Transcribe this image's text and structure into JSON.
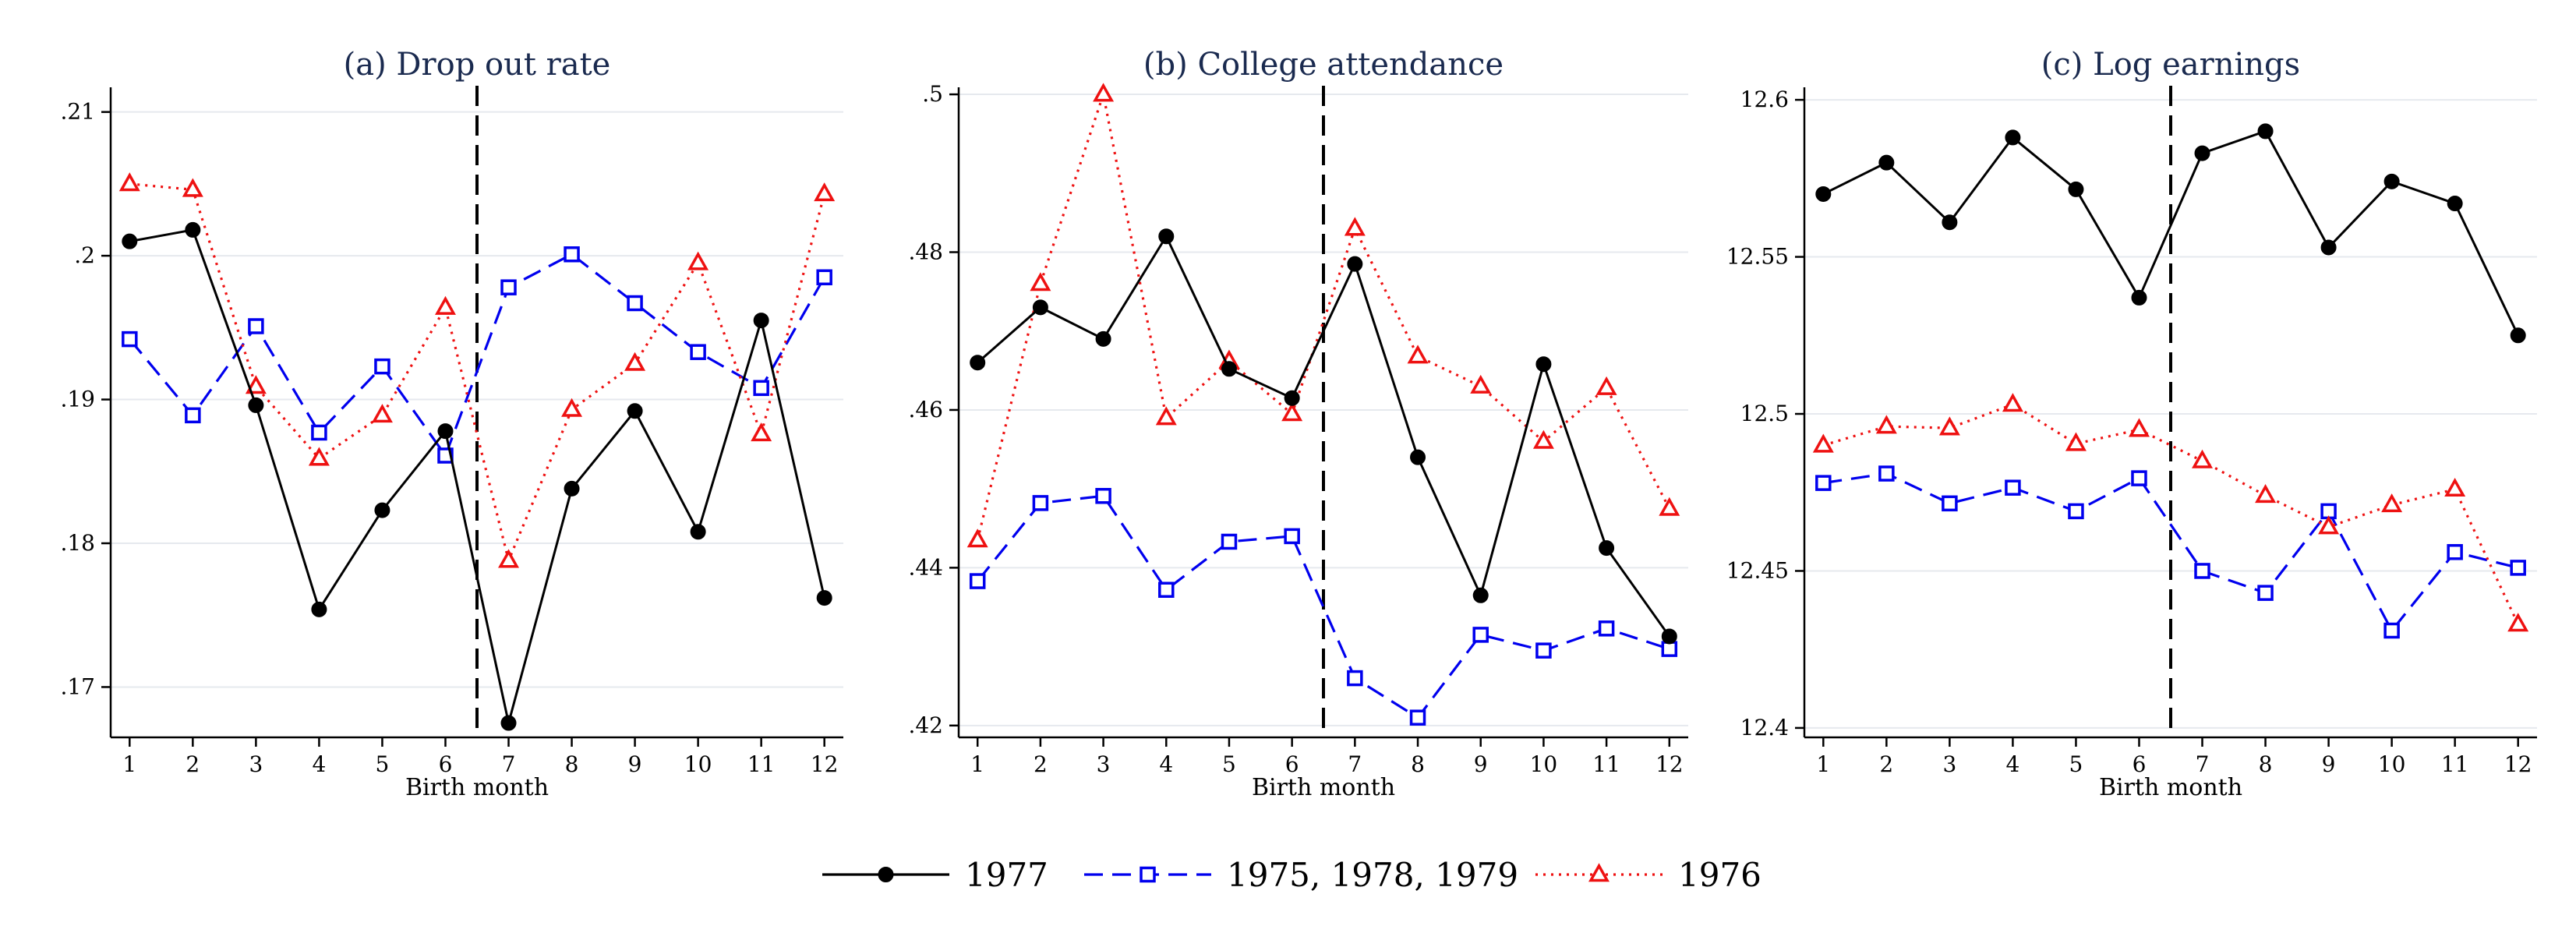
{
  "chart_data": [
    {
      "type": "line",
      "title": "(a) Drop out rate",
      "xlabel": "Birth month",
      "ylabel": "",
      "x": [
        1,
        2,
        3,
        4,
        5,
        6,
        7,
        8,
        9,
        10,
        11,
        12
      ],
      "xlim": [
        0.7,
        12.3
      ],
      "ylim": [
        0.1665,
        0.2115
      ],
      "yticks": [
        0.17,
        0.18,
        0.19,
        0.2,
        0.21
      ],
      "ytick_labels": [
        ".17",
        ".18",
        ".19",
        ".2",
        ".21"
      ],
      "cutoff_x": 6.5,
      "grid": true,
      "series": [
        {
          "name": "1977",
          "color": "#000000",
          "style": "solid",
          "marker": "circle",
          "values": [
            0.201,
            0.2018,
            0.1896,
            0.1754,
            0.1823,
            0.1878,
            0.1675,
            0.1838,
            0.1892,
            0.1808,
            0.1955,
            0.1762
          ]
        },
        {
          "name": "1975, 1978, 1979",
          "color": "#0000ee",
          "style": "dashed",
          "marker": "square",
          "values": [
            0.1942,
            0.1889,
            0.1951,
            0.1877,
            0.1923,
            0.1861,
            0.1978,
            0.2001,
            0.1967,
            0.1933,
            0.1908,
            0.1985
          ]
        },
        {
          "name": "1976",
          "color": "#ee1111",
          "style": "dotted",
          "marker": "triangle",
          "values": [
            0.205,
            0.2046,
            0.1909,
            0.1859,
            0.1889,
            0.1964,
            0.1788,
            0.1893,
            0.1925,
            0.1995,
            0.1876,
            0.2043
          ]
        }
      ]
    },
    {
      "type": "line",
      "title": "(b) College attendance",
      "xlabel": "Birth month",
      "ylabel": "",
      "x": [
        1,
        2,
        3,
        4,
        5,
        6,
        7,
        8,
        9,
        10,
        11,
        12
      ],
      "xlim": [
        0.7,
        12.3
      ],
      "ylim": [
        0.4185,
        0.5005
      ],
      "yticks": [
        0.42,
        0.44,
        0.46,
        0.48,
        0.5
      ],
      "ytick_labels": [
        ".42",
        ".44",
        ".46",
        ".48",
        ".5"
      ],
      "cutoff_x": 6.5,
      "grid": true,
      "series": [
        {
          "name": "1977",
          "color": "#000000",
          "style": "solid",
          "marker": "circle",
          "values": [
            0.466,
            0.473,
            0.469,
            0.482,
            0.4652,
            0.4615,
            0.4785,
            0.454,
            0.4365,
            0.4658,
            0.4425,
            0.4313
          ]
        },
        {
          "name": "1975, 1978, 1979",
          "color": "#0000ee",
          "style": "dashed",
          "marker": "square",
          "values": [
            0.4383,
            0.4482,
            0.4491,
            0.4372,
            0.4433,
            0.444,
            0.426,
            0.421,
            0.4315,
            0.4295,
            0.4323,
            0.4297
          ]
        },
        {
          "name": "1976",
          "color": "#ee1111",
          "style": "dotted",
          "marker": "triangle",
          "values": [
            0.4435,
            0.476,
            0.5,
            0.459,
            0.4662,
            0.4595,
            0.483,
            0.4668,
            0.463,
            0.456,
            0.4628,
            0.4475
          ]
        }
      ]
    },
    {
      "type": "line",
      "title": "(c) Log earnings",
      "xlabel": "Birth month",
      "ylabel": "",
      "x": [
        1,
        2,
        3,
        4,
        5,
        6,
        7,
        8,
        9,
        10,
        11,
        12
      ],
      "xlim": [
        0.7,
        12.3
      ],
      "ylim": [
        12.397,
        12.603
      ],
      "yticks": [
        12.4,
        12.45,
        12.5,
        12.55,
        12.6
      ],
      "ytick_labels": [
        "12.4",
        "12.45",
        "12.5",
        "12.55",
        "12.6"
      ],
      "cutoff_x": 6.5,
      "grid": true,
      "series": [
        {
          "name": "1977",
          "color": "#000000",
          "style": "solid",
          "marker": "circle",
          "values": [
            12.57,
            12.58,
            12.561,
            12.588,
            12.5715,
            12.537,
            12.583,
            12.59,
            12.553,
            12.574,
            12.567,
            12.525
          ]
        },
        {
          "name": "1975, 1978, 1979",
          "color": "#0000ee",
          "style": "dashed",
          "marker": "square",
          "values": [
            12.478,
            12.481,
            12.4715,
            12.4765,
            12.469,
            12.4795,
            12.45,
            12.443,
            12.469,
            12.431,
            12.456,
            12.451
          ]
        },
        {
          "name": "1976",
          "color": "#ee1111",
          "style": "dotted",
          "marker": "triangle",
          "values": [
            12.49,
            12.496,
            12.4955,
            12.503,
            12.4905,
            12.495,
            12.485,
            12.474,
            12.464,
            12.471,
            12.476,
            12.433
          ]
        }
      ]
    }
  ],
  "legend": {
    "placement": "bottom",
    "items": [
      {
        "label": "1977",
        "color": "#000000",
        "style": "solid",
        "marker": "circle"
      },
      {
        "label": "1975, 1978, 1979",
        "color": "#0000ee",
        "style": "dashed",
        "marker": "square"
      },
      {
        "label": "1976",
        "color": "#ee1111",
        "style": "dotted",
        "marker": "triangle"
      }
    ]
  }
}
